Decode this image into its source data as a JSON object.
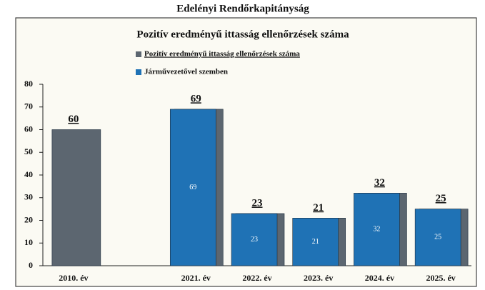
{
  "header": {
    "title": "Edelényi Rendőrkapitányság"
  },
  "chart_data": {
    "type": "bar",
    "title": "Pozitív eredményű ittasság ellenőrzések száma",
    "categories": [
      "2010. év",
      null,
      "2021. év",
      "2022. év",
      "2023. év",
      "2024. év",
      "2025. év"
    ],
    "series": [
      {
        "name": "Pozitív eredményű ittasság ellenőrzések száma",
        "color": "#5c6670",
        "values": [
          60,
          null,
          69,
          23,
          21,
          32,
          25
        ]
      },
      {
        "name": "Járművezetővel szemben",
        "color": "#1f72b5",
        "values": [
          null,
          null,
          69,
          23,
          21,
          32,
          25
        ]
      }
    ],
    "ylim": [
      0,
      80
    ],
    "yticks": [
      0,
      10,
      20,
      30,
      40,
      50,
      60,
      70,
      80
    ],
    "grid": false
  }
}
